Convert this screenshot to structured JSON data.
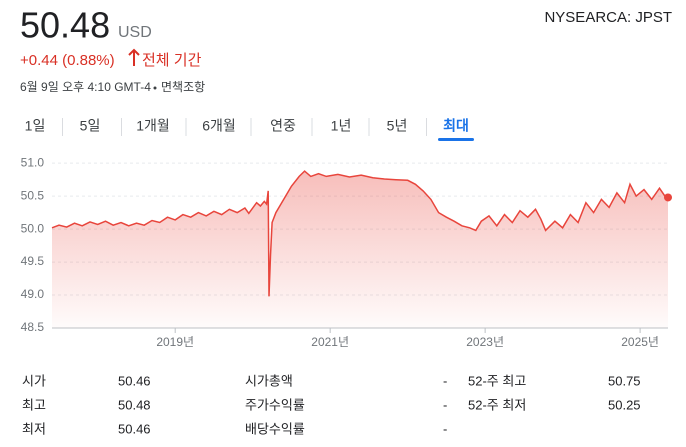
{
  "header": {
    "price": "50.48",
    "currency": "USD",
    "ticker": "NYSEARCA: JPST",
    "change": "+0.44 (0.88%)",
    "period": "전체 기간",
    "timestamp": "6월 9일 오후 4:10 GMT-4",
    "disclaimer": "면책조항"
  },
  "tabs": {
    "items": [
      "1일",
      "5일",
      "1개월",
      "6개월",
      "연중",
      "1년",
      "5년",
      "최대"
    ],
    "selected": "최대"
  },
  "chart_data": {
    "type": "line",
    "fill": true,
    "end_marker": true,
    "grid": true,
    "xlim": [
      2017.41,
      2025.36
    ],
    "xticks": [
      {
        "value": 2019,
        "label": "2019년"
      },
      {
        "value": 2021,
        "label": "2021년"
      },
      {
        "value": 2023,
        "label": "2023년"
      },
      {
        "value": 2025,
        "label": "2025년"
      }
    ],
    "ylim": [
      48.5,
      51.2
    ],
    "yticks": [
      {
        "value": 51,
        "label": "51.0"
      },
      50.5,
      {
        "value": 50,
        "label": "50.0"
      },
      49.5,
      {
        "value": 49,
        "label": "49.0"
      },
      48.5
    ],
    "x": [
      2017.41,
      2017.5,
      2017.6,
      2017.7,
      2017.8,
      2017.9,
      2018.0,
      2018.1,
      2018.2,
      2018.3,
      2018.4,
      2018.5,
      2018.6,
      2018.7,
      2018.8,
      2018.9,
      2019.0,
      2019.1,
      2019.2,
      2019.3,
      2019.4,
      2019.5,
      2019.6,
      2019.7,
      2019.8,
      2019.9,
      2019.95,
      2020.05,
      2020.1,
      2020.15,
      2020.18,
      2020.2,
      2020.21,
      2020.23,
      2020.25,
      2020.3,
      2020.4,
      2020.5,
      2020.6,
      2020.67,
      2020.75,
      2020.85,
      2020.95,
      2021.1,
      2021.25,
      2021.4,
      2021.55,
      2021.7,
      2021.85,
      2022.0,
      2022.1,
      2022.2,
      2022.3,
      2022.4,
      2022.5,
      2022.6,
      2022.7,
      2022.8,
      2022.88,
      2022.95,
      2023.05,
      2023.15,
      2023.25,
      2023.35,
      2023.45,
      2023.55,
      2023.65,
      2023.72,
      2023.78,
      2023.9,
      2024.0,
      2024.1,
      2024.2,
      2024.3,
      2024.4,
      2024.5,
      2024.6,
      2024.7,
      2024.8,
      2024.87,
      2024.95,
      2025.05,
      2025.15,
      2025.25,
      2025.32,
      2025.36
    ],
    "series": [
      {
        "color": "#e8453c",
        "values": [
          50.02,
          50.06,
          50.03,
          50.09,
          50.05,
          50.11,
          50.07,
          50.12,
          50.06,
          50.1,
          50.05,
          50.09,
          50.06,
          50.13,
          50.1,
          50.18,
          50.14,
          50.22,
          50.18,
          50.25,
          50.2,
          50.27,
          50.22,
          50.3,
          50.25,
          50.32,
          50.24,
          50.4,
          50.35,
          50.42,
          50.38,
          50.58,
          48.98,
          49.6,
          50.1,
          50.25,
          50.45,
          50.65,
          50.8,
          50.88,
          50.8,
          50.84,
          50.8,
          50.83,
          50.79,
          50.82,
          50.78,
          50.76,
          50.75,
          50.74,
          50.68,
          50.58,
          50.45,
          50.25,
          50.18,
          50.12,
          50.05,
          50.02,
          49.98,
          50.12,
          50.2,
          50.05,
          50.22,
          50.1,
          50.28,
          50.18,
          50.3,
          50.15,
          49.98,
          50.12,
          50.02,
          50.22,
          50.1,
          50.4,
          50.25,
          50.45,
          50.33,
          50.55,
          50.4,
          50.68,
          50.5,
          50.6,
          50.45,
          50.62,
          50.5,
          50.48
        ]
      }
    ]
  },
  "stats": [
    [
      {
        "label": "시가",
        "value": "50.46"
      },
      {
        "label": "최고",
        "value": "50.48"
      },
      {
        "label": "최저",
        "value": "50.46"
      }
    ],
    [
      {
        "label": "시가총액",
        "value": "-"
      },
      {
        "label": "주가수익률",
        "value": "-"
      },
      {
        "label": "배당수익률",
        "value": "-"
      }
    ],
    [
      {
        "label": "52-주 최고",
        "value": "50.75"
      },
      {
        "label": "52-주 최저",
        "value": "50.25"
      }
    ]
  ]
}
